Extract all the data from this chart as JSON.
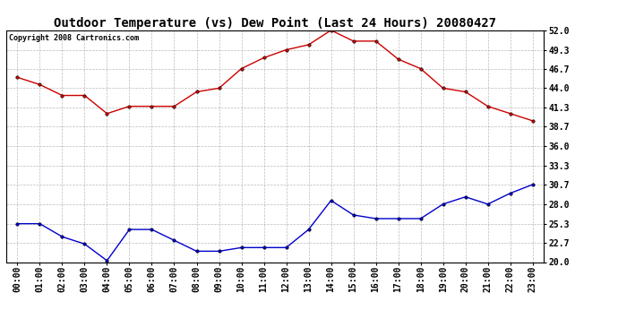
{
  "title": "Outdoor Temperature (vs) Dew Point (Last 24 Hours) 20080427",
  "copyright": "Copyright 2008 Cartronics.com",
  "x_labels": [
    "00:00",
    "01:00",
    "02:00",
    "03:00",
    "04:00",
    "05:00",
    "06:00",
    "07:00",
    "08:00",
    "09:00",
    "10:00",
    "11:00",
    "12:00",
    "13:00",
    "14:00",
    "15:00",
    "16:00",
    "17:00",
    "18:00",
    "19:00",
    "20:00",
    "21:00",
    "22:00",
    "23:00"
  ],
  "temp_data": [
    45.5,
    44.5,
    43.0,
    43.0,
    40.5,
    41.5,
    41.5,
    41.5,
    43.5,
    44.0,
    46.7,
    48.2,
    49.3,
    50.0,
    52.0,
    50.5,
    50.5,
    48.0,
    46.7,
    44.0,
    43.5,
    41.5,
    40.5,
    39.5
  ],
  "dew_data": [
    25.3,
    25.3,
    23.5,
    22.5,
    20.2,
    24.5,
    24.5,
    23.0,
    21.5,
    21.5,
    22.0,
    22.0,
    22.0,
    24.5,
    28.5,
    26.5,
    26.0,
    26.0,
    26.0,
    28.0,
    29.0,
    28.0,
    29.5,
    30.7
  ],
  "ylim": [
    20.0,
    52.0
  ],
  "yticks": [
    20.0,
    22.7,
    25.3,
    28.0,
    30.7,
    33.3,
    36.0,
    38.7,
    41.3,
    44.0,
    46.7,
    49.3,
    52.0
  ],
  "temp_color": "#cc0000",
  "dew_color": "#0000cc",
  "bg_color": "#ffffff",
  "plot_bg_color": "#ffffff",
  "grid_color": "#aaaaaa",
  "title_fontsize": 10,
  "tick_fontsize": 7,
  "copyright_fontsize": 6
}
